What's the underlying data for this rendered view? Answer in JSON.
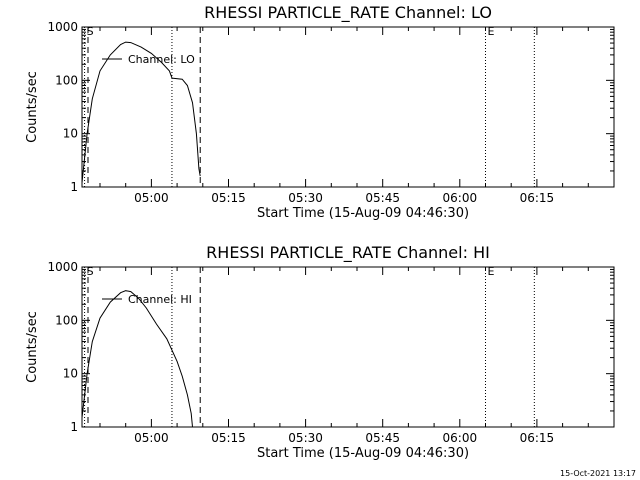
{
  "chart_data": [
    {
      "type": "line",
      "title": "RHESSI PARTICLE_RATE Channel: LO",
      "xlabel": "Start Time (15-Aug-09 04:46:30)",
      "ylabel": "Counts/sec",
      "yscale": "log",
      "ylim": [
        1,
        1000
      ],
      "xlim": [
        "04:46:30",
        "06:30:00"
      ],
      "x_ticks": [
        "05:00",
        "05:15",
        "05:30",
        "05:45",
        "06:00",
        "06:15"
      ],
      "y_ticks": [
        "1",
        "10",
        "100",
        "1000"
      ],
      "legend": "top-left",
      "markers": [
        {
          "label": "S",
          "time": "04:47:00",
          "style": "dotted"
        },
        {
          "label": "E",
          "time": "06:05:00",
          "style": "dotted"
        }
      ],
      "vlines": [
        {
          "time": "04:47:40",
          "style": "dashed"
        },
        {
          "time": "05:04:00",
          "style": "dotted"
        },
        {
          "time": "05:09:30",
          "style": "dashed"
        },
        {
          "time": "06:14:30",
          "style": "dotted"
        }
      ],
      "series": [
        {
          "name": "Channel: LO",
          "x": [
            "04:46:30",
            "04:47:30",
            "04:48:30",
            "04:50:00",
            "04:52:00",
            "04:54:00",
            "04:55:00",
            "04:56:00",
            "04:58:00",
            "05:00:00",
            "05:02:00",
            "05:03:30",
            "05:04:00",
            "05:06:00",
            "05:07:00",
            "05:08:00",
            "05:08:45",
            "05:09:15",
            "05:09:30"
          ],
          "values": [
            1.2,
            10,
            45,
            150,
            300,
            470,
            520,
            510,
            420,
            320,
            215,
            150,
            110,
            105,
            80,
            38,
            10,
            2.2,
            1.6
          ]
        }
      ]
    },
    {
      "type": "line",
      "title": "RHESSI PARTICLE_RATE Channel: HI",
      "xlabel": "Start Time (15-Aug-09 04:46:30)",
      "ylabel": "Counts/sec",
      "yscale": "log",
      "ylim": [
        1,
        1000
      ],
      "xlim": [
        "04:46:30",
        "06:30:00"
      ],
      "x_ticks": [
        "05:00",
        "05:15",
        "05:30",
        "05:45",
        "06:00",
        "06:15"
      ],
      "y_ticks": [
        "1",
        "10",
        "100",
        "1000"
      ],
      "legend": "top-left",
      "markers": [
        {
          "label": "S",
          "time": "04:47:00",
          "style": "dotted"
        },
        {
          "label": "E",
          "time": "06:05:00",
          "style": "dotted"
        }
      ],
      "vlines": [
        {
          "time": "04:47:40",
          "style": "dashed"
        },
        {
          "time": "05:04:00",
          "style": "dotted"
        },
        {
          "time": "05:09:30",
          "style": "dashed"
        },
        {
          "time": "06:14:30",
          "style": "dotted"
        }
      ],
      "series": [
        {
          "name": "Channel: HI",
          "x": [
            "04:46:30",
            "04:47:30",
            "04:48:30",
            "04:50:00",
            "04:52:00",
            "04:54:00",
            "04:55:00",
            "04:56:00",
            "04:57:30",
            "04:59:00",
            "05:01:00",
            "05:03:00",
            "05:05:00",
            "05:06:00",
            "05:07:00",
            "05:07:45",
            "05:08:00"
          ],
          "values": [
            1.5,
            10,
            40,
            110,
            220,
            330,
            360,
            345,
            260,
            170,
            85,
            45,
            17,
            9,
            4,
            1.8,
            1.0
          ]
        }
      ]
    }
  ],
  "footer": {
    "timestamp": "15-Oct-2021 13:17"
  }
}
